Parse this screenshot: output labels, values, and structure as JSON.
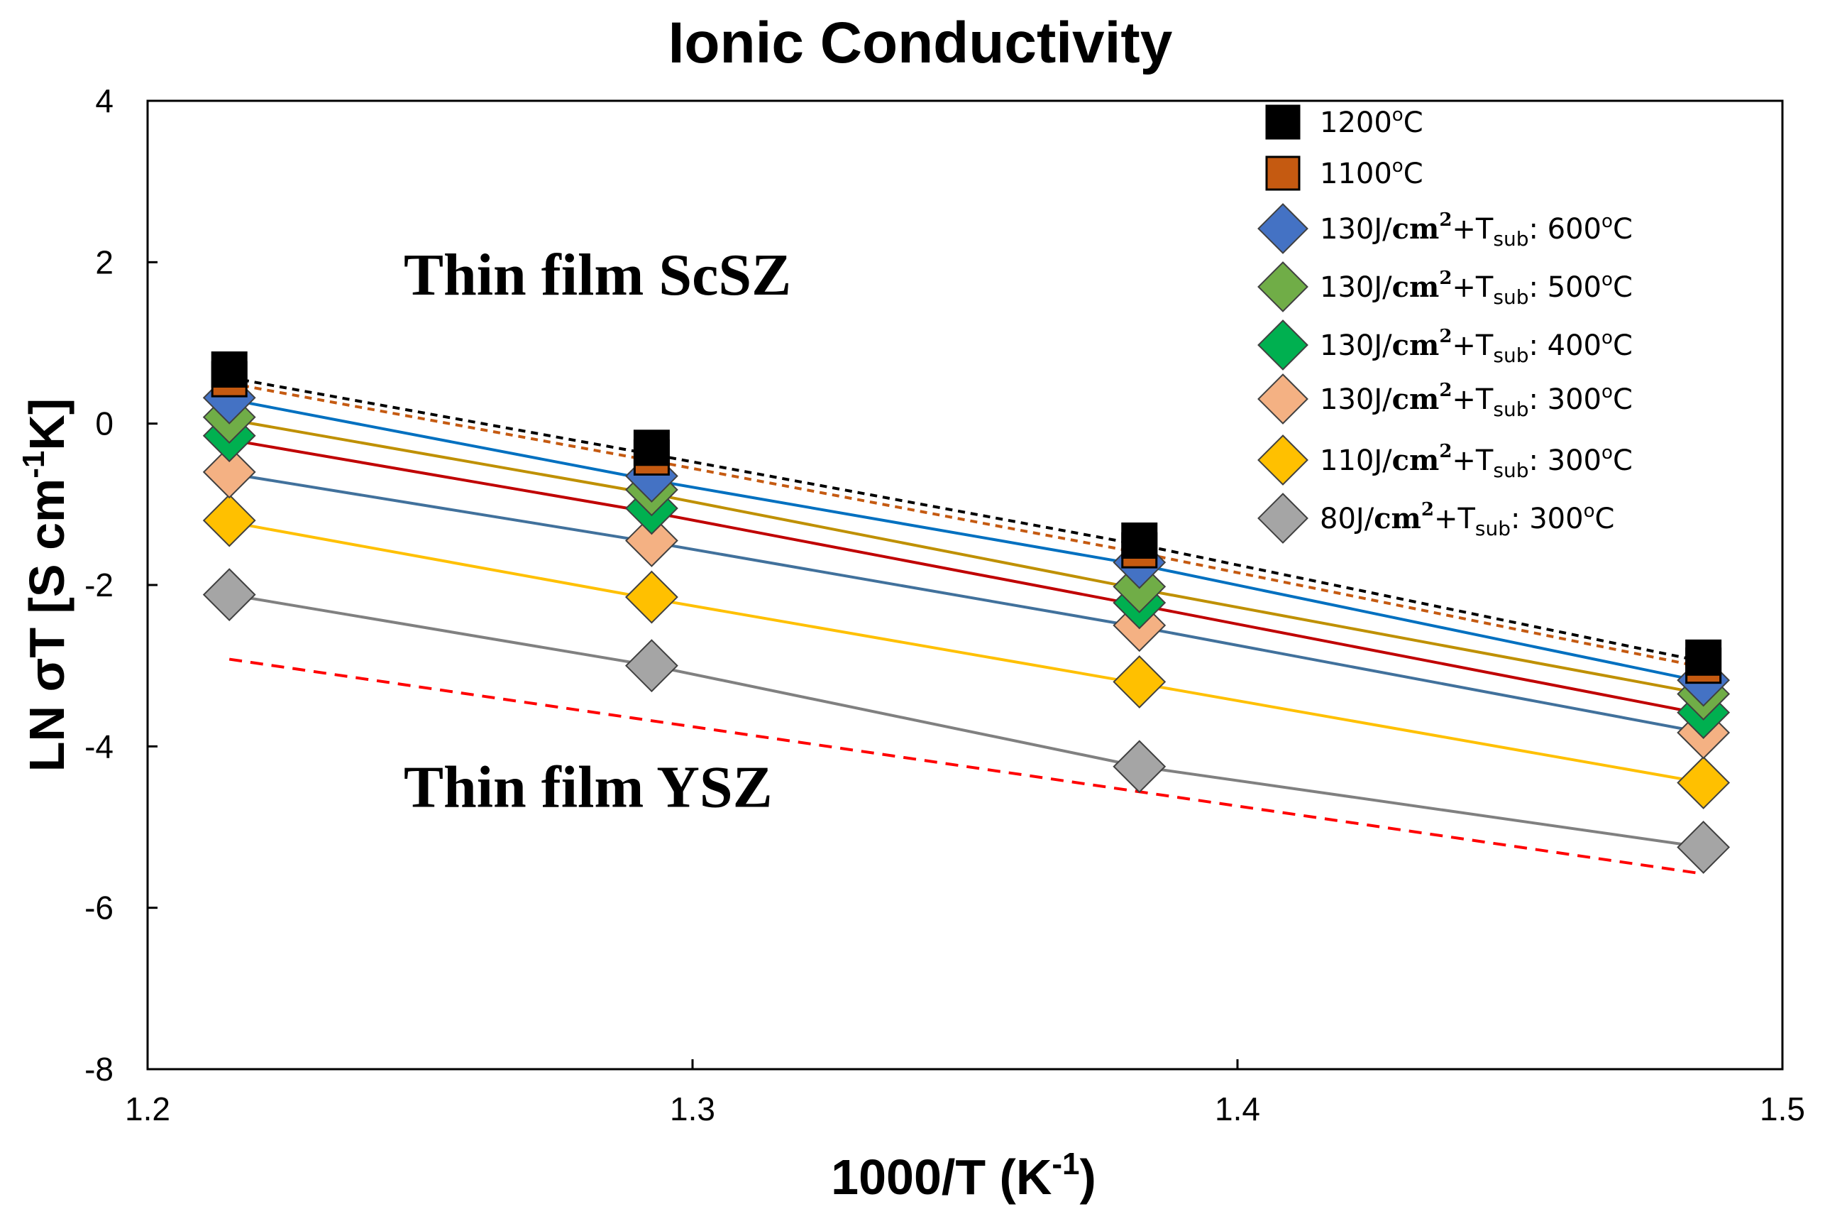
{
  "chart_data": {
    "type": "scatter",
    "title": "Ionic Conductivity",
    "xlabel": "1000/T (K",
    "xlabel_sup": "-1",
    "xlabel_end": ")",
    "ylabel": "LN σT [S cm",
    "ylabel_sup": "-1",
    "ylabel_end": "K]",
    "xlim": [
      1.2,
      1.5
    ],
    "ylim": [
      -8,
      4
    ],
    "x_ticks": [
      "1.2",
      "1.3",
      "1.4",
      "1.5"
    ],
    "y_ticks": [
      "-8",
      "-6",
      "-4",
      "-2",
      "0",
      "2",
      "4"
    ],
    "grid": false,
    "legend_position": "top-right",
    "annotations": [
      {
        "text": "Thin film ScSZ",
        "x": 1.247,
        "y": 1.6
      },
      {
        "text": "Thin film YSZ",
        "x": 1.247,
        "y": -4.75
      }
    ],
    "series": [
      {
        "name": "1200°C",
        "label_parts": [
          "1200",
          "o",
          "C"
        ],
        "marker": "square",
        "color": "#000000",
        "x": [
          1.215,
          1.2925,
          1.382,
          1.4855
        ],
        "y": [
          0.67,
          -0.3,
          -1.45,
          -2.9
        ],
        "trend": {
          "style": "dashed",
          "color": "#000000",
          "y": [
            0.57,
            -0.38,
            -1.5,
            -2.95
          ]
        }
      },
      {
        "name": "1100°C",
        "label_parts": [
          "1100",
          "o",
          "C"
        ],
        "marker": "square",
        "color": "#c55a11",
        "x": [
          1.215,
          1.2925,
          1.382,
          1.4855
        ],
        "y": [
          0.55,
          -0.42,
          -1.57,
          -3.0
        ],
        "trend": {
          "style": "dashed",
          "color": "#c55a11",
          "y": [
            0.5,
            -0.46,
            -1.6,
            -3.02
          ]
        }
      },
      {
        "name": "130J/cm2+Tsub: 600°C",
        "label_parts": [
          "130J/",
          "cm",
          "2",
          "+T",
          "sub",
          ": 600",
          "o",
          "C"
        ],
        "marker": "diamond",
        "color": "#4472c4",
        "x": [
          1.215,
          1.2925,
          1.382,
          1.4855
        ],
        "y": [
          0.32,
          -0.65,
          -1.72,
          -3.18
        ],
        "trend": {
          "style": "solid",
          "color": "#0070c0",
          "y": [
            0.3,
            -0.7,
            -1.75,
            -3.2
          ]
        }
      },
      {
        "name": "130J/cm2+Tsub: 500°C",
        "label_parts": [
          "130J/",
          "cm",
          "2",
          "+T",
          "sub",
          ": 500",
          "o",
          "C"
        ],
        "marker": "diamond",
        "color": "#70ad47",
        "x": [
          1.215,
          1.2925,
          1.382,
          1.4855
        ],
        "y": [
          0.08,
          -0.82,
          -2.02,
          -3.35
        ],
        "trend": {
          "style": "solid",
          "color": "#bf9000",
          "y": [
            0.05,
            -0.87,
            -2.05,
            -3.35
          ]
        }
      },
      {
        "name": "130J/cm2+Tsub: 400°C",
        "label_parts": [
          "130J/",
          "cm",
          "2",
          "+T",
          "sub",
          ": 400",
          "o",
          "C"
        ],
        "marker": "diamond",
        "color": "#00b050",
        "x": [
          1.215,
          1.2925,
          1.382,
          1.4855
        ],
        "y": [
          -0.15,
          -1.05,
          -2.22,
          -3.58
        ],
        "trend": {
          "style": "solid",
          "color": "#c00000",
          "y": [
            -0.2,
            -1.1,
            -2.25,
            -3.6
          ]
        }
      },
      {
        "name": "130J/cm2+Tsub: 300°C",
        "label_parts": [
          "130J/",
          "cm",
          "2",
          "+T",
          "sub",
          ": 300",
          "o",
          "C"
        ],
        "marker": "diamond",
        "color": "#f4b183",
        "x": [
          1.215,
          1.2925,
          1.382,
          1.4855
        ],
        "y": [
          -0.6,
          -1.45,
          -2.5,
          -3.83
        ],
        "trend": {
          "style": "solid",
          "color": "#41719c",
          "y": [
            -0.62,
            -1.47,
            -2.52,
            -3.83
          ]
        }
      },
      {
        "name": "110J/cm2+Tsub: 300°C",
        "label_parts": [
          "110J/",
          "cm",
          "2",
          "+T",
          "sub",
          ": 300",
          "o",
          "C"
        ],
        "marker": "diamond",
        "color": "#ffc000",
        "x": [
          1.215,
          1.2925,
          1.382,
          1.4855
        ],
        "y": [
          -1.2,
          -2.15,
          -3.2,
          -4.45
        ],
        "trend": {
          "style": "solid",
          "color": "#ffc000",
          "y": [
            -1.22,
            -2.17,
            -3.22,
            -4.45
          ]
        }
      },
      {
        "name": "80J/cm2+Tsub: 300°C",
        "label_parts": [
          "80J/",
          "cm",
          "2",
          "+T",
          "sub",
          ": 300",
          "o",
          "C"
        ],
        "marker": "diamond",
        "color": "#a5a5a5",
        "x": [
          1.215,
          1.2925,
          1.382,
          1.4855
        ],
        "y": [
          -2.12,
          -3.0,
          -4.25,
          -5.25
        ],
        "trend": {
          "style": "solid",
          "color": "#808080",
          "y": [
            -2.12,
            -3.0,
            -4.25,
            -5.25
          ]
        }
      }
    ],
    "reference_line": {
      "name": "Thin film YSZ",
      "style": "dashed",
      "color": "#ff0000",
      "x": [
        1.215,
        1.4855
      ],
      "y": [
        -2.92,
        -5.58
      ]
    }
  }
}
